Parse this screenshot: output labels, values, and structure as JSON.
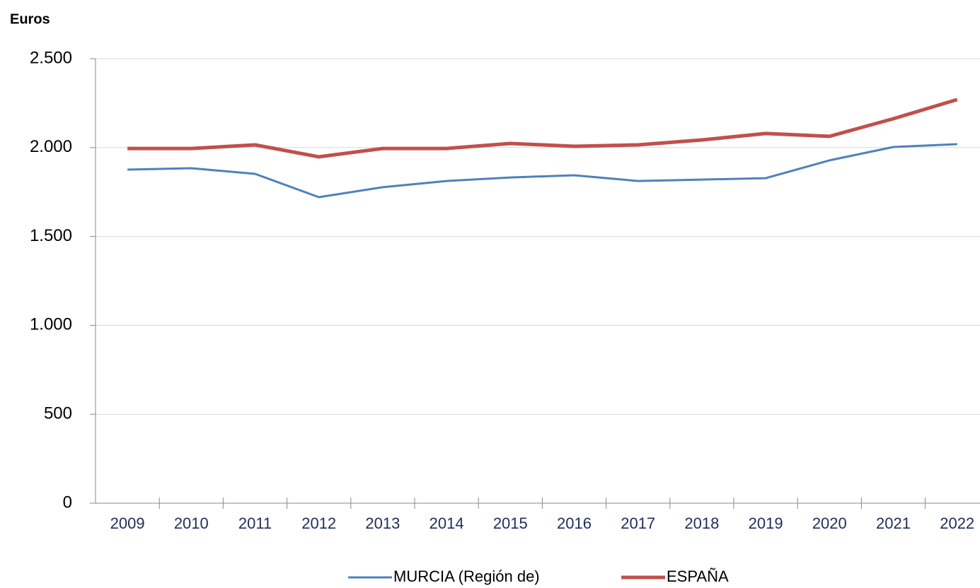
{
  "chart_data": {
    "type": "line",
    "y_axis_label": "Euros",
    "categories": [
      "2009",
      "2010",
      "2011",
      "2012",
      "2013",
      "2014",
      "2015",
      "2016",
      "2017",
      "2018",
      "2019",
      "2020",
      "2021",
      "2022"
    ],
    "series": [
      {
        "name": "MURCIA (Región de)",
        "color": "#4f81bd",
        "values": [
          1876,
          1884,
          1852,
          1721,
          1777,
          1812,
          1832,
          1844,
          1812,
          1820,
          1828,
          1928,
          2003,
          2019
        ]
      },
      {
        "name": "ESPAÑA",
        "color": "#c0504d",
        "values": [
          1995,
          1995,
          2015,
          1948,
          1995,
          1995,
          2023,
          2007,
          2015,
          2043,
          2079,
          2063,
          2162,
          2270
        ]
      }
    ],
    "ylim": [
      0,
      2500
    ],
    "yticks": [
      0,
      500,
      {
        "value": 1000,
        "label": "1.000"
      },
      {
        "value": 1500,
        "label": "1.500"
      },
      {
        "value": 2000,
        "label": "2.000"
      },
      {
        "value": 2500,
        "label": "2.500"
      }
    ],
    "grid": true,
    "legend": "bottom"
  }
}
